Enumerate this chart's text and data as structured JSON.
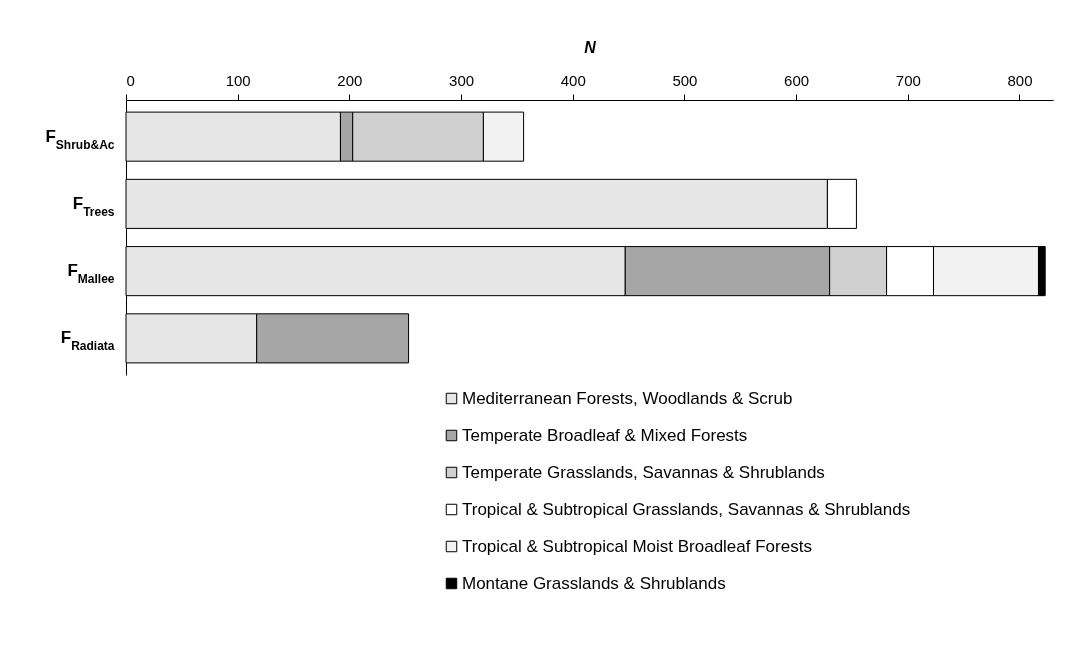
{
  "chart_data": {
    "type": "bar",
    "orientation": "horizontal",
    "stacked": true,
    "xlabel": "N",
    "categories": [
      "F$_{Shrub&Ac}$",
      "F$_{Trees}$",
      "F$_{Mallee}$",
      "F$_{Radiata}$"
    ],
    "series": [
      {
        "name": "Mediterranean Forests, Woodlands & Scrub",
        "color": "#e6e6e6",
        "values": [
          192,
          628,
          447,
          117
        ]
      },
      {
        "name": "Temperate Broadleaf & Mixed Forests",
        "color": "#a6a6a6",
        "values": [
          11,
          null,
          183,
          136
        ]
      },
      {
        "name": "Temperate Grasslands, Savannas & Shrublands",
        "color": "#d0d0d0",
        "values": [
          117,
          null,
          51,
          null
        ]
      },
      {
        "name": "Tropical & Subtropical Grasslands, Savannas & Shrublands",
        "color": "#ffffff",
        "values": [
          null,
          26,
          42,
          null
        ]
      },
      {
        "name": "Tropical & Subtropical Moist Broadleaf Forests",
        "color": "#f2f2f2",
        "values": [
          36,
          null,
          94,
          null
        ]
      },
      {
        "name": "Montane Grasslands & Shrublands",
        "color": "#000000",
        "values": [
          null,
          null,
          6,
          null
        ]
      }
    ],
    "xlim": [
      0,
      830
    ],
    "xticks": [
      0,
      100,
      200,
      300,
      400,
      500,
      600,
      700,
      800
    ],
    "grid": false,
    "legend": "bottom"
  }
}
